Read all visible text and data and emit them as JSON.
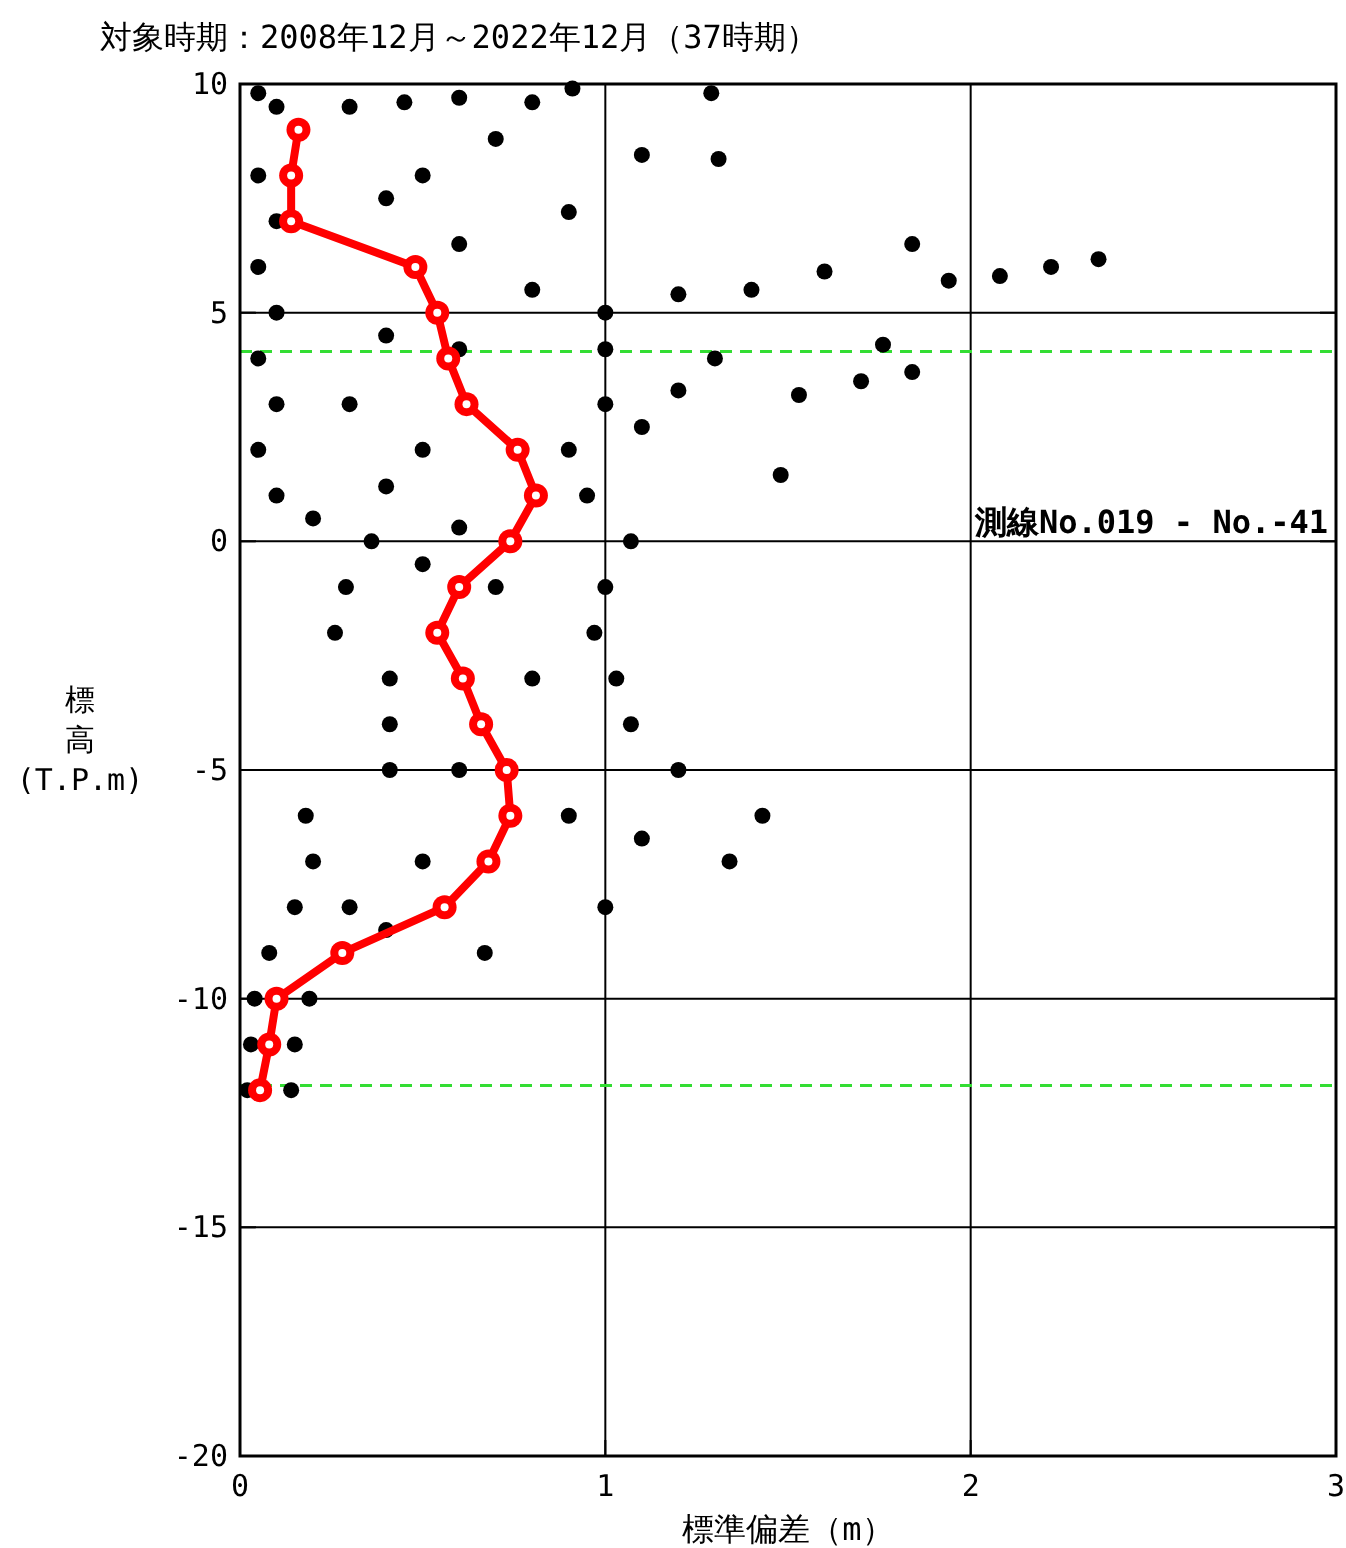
{
  "chart_data": {
    "type": "scatter",
    "title": "対象時期：2008年12月～2022年12月（37時期）",
    "xlabel": "標準偏差（m）",
    "ylabel": "標高(T.P.m)",
    "xlim": [
      0,
      3
    ],
    "ylim": [
      -20,
      10
    ],
    "xticks": [
      0,
      1,
      2,
      3
    ],
    "yticks": [
      -20,
      -15,
      -10,
      -5,
      0,
      5,
      10
    ],
    "grid": true,
    "annotations": [
      "測線No.019 - No.-41"
    ],
    "ref_lines": [
      {
        "axis": "y",
        "value": 4.15,
        "color": "#33dd33",
        "line_style": "dashed"
      },
      {
        "axis": "y",
        "value": -11.9,
        "color": "#33dd33",
        "line_style": "dashed"
      }
    ],
    "series": [
      {
        "color": "#000000",
        "marker": "circle",
        "x": [
          0.05,
          0.1,
          0.05,
          0.1,
          0.05,
          0.1,
          0.05,
          0.1,
          0.05,
          0.1,
          0.2,
          0.3,
          0.45,
          0.6,
          0.8,
          0.91,
          1.1,
          1.31,
          1.29,
          2.35,
          2.22,
          2.08,
          1.84,
          1.94,
          1.76,
          1.84,
          1.7,
          1.53,
          1.48,
          1.0,
          1.2,
          1.4,
          1.6,
          1.0,
          1.3,
          1.0,
          1.2,
          0.9,
          1.1,
          0.95,
          0.5,
          0.4,
          0.7,
          0.9,
          0.6,
          0.8,
          0.4,
          0.6,
          0.3,
          0.5,
          0.4,
          0.6,
          0.36,
          1.07,
          0.29,
          1.0,
          0.26,
          0.97,
          0.41,
          1.03,
          0.41,
          1.07,
          0.41,
          1.2,
          0.18,
          1.43,
          0.2,
          1.34,
          0.15,
          1.0,
          0.08,
          0.67,
          0.04,
          0.19,
          0.03,
          0.15,
          0.02,
          0.14,
          0.5,
          0.7,
          0.8,
          0.6,
          0.9,
          1.1,
          0.5,
          0.4,
          0.3
        ],
        "values": [
          9.8,
          9.5,
          8,
          7,
          6,
          5,
          4,
          3,
          2,
          1,
          0.5,
          9.5,
          9.6,
          9.7,
          9.6,
          9.9,
          8.45,
          8.36,
          9.8,
          6.17,
          6.0,
          5.8,
          6.5,
          5.7,
          4.3,
          3.7,
          3.5,
          3.2,
          1.45,
          5.0,
          5.4,
          5.5,
          5.9,
          4.2,
          4.0,
          3.0,
          3.3,
          2.0,
          2.5,
          1.0,
          8,
          7.5,
          8.8,
          7.2,
          6.5,
          5.5,
          4.5,
          4.2,
          3,
          2,
          1.2,
          0.3,
          0,
          0,
          -1,
          -1,
          -2,
          -2,
          -3,
          -3,
          -4,
          -4,
          -5,
          -5,
          -6,
          -6,
          -7,
          -7,
          -8,
          -8,
          -9,
          -9,
          -10,
          -10,
          -11,
          -11,
          -12,
          -12,
          -0.5,
          -1,
          -3,
          -5,
          -6,
          -6.5,
          -7,
          -8.5,
          -8
        ]
      },
      {
        "type": "line",
        "color": "#ff0000",
        "marker": "circle",
        "x": [
          0.16,
          0.14,
          0.14,
          0.48,
          0.54,
          0.57,
          0.62,
          0.76,
          0.81,
          0.74,
          0.6,
          0.54,
          0.61,
          0.66,
          0.73,
          0.74,
          0.68,
          0.56,
          0.28,
          0.1,
          0.08,
          0.055
        ],
        "values": [
          9,
          8,
          7,
          6,
          5,
          4,
          3,
          2,
          1,
          0,
          -1,
          -2,
          -3,
          -4,
          -5,
          -6,
          -7,
          -8,
          -9,
          -10,
          -11,
          -12
        ]
      }
    ]
  }
}
